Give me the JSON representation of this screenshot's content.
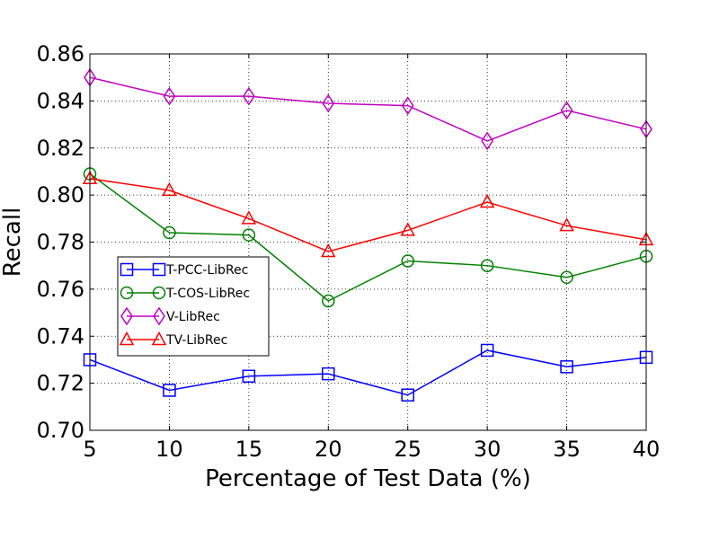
{
  "chart_data": {
    "type": "line",
    "title": "",
    "xlabel": "Percentage of Test Data (%)",
    "ylabel": "Recall",
    "x": [
      5,
      10,
      15,
      20,
      25,
      30,
      35,
      40
    ],
    "xlim": [
      5,
      40
    ],
    "ylim": [
      0.7,
      0.86
    ],
    "x_ticks": [
      "5",
      "10",
      "15",
      "20",
      "25",
      "30",
      "35",
      "40"
    ],
    "y_ticks": [
      "0.70",
      "0.72",
      "0.74",
      "0.76",
      "0.78",
      "0.80",
      "0.82",
      "0.84",
      "0.86"
    ],
    "grid": true,
    "legend_position": "center-left",
    "series": [
      {
        "name": "T-PCC-LibRec",
        "color": "#0000ff",
        "marker": "square",
        "values": [
          0.73,
          0.717,
          0.723,
          0.724,
          0.715,
          0.734,
          0.727,
          0.731
        ]
      },
      {
        "name": "T-COS-LibRec",
        "color": "#008000",
        "marker": "circle",
        "values": [
          0.809,
          0.784,
          0.783,
          0.755,
          0.772,
          0.77,
          0.765,
          0.774
        ]
      },
      {
        "name": "V-LibRec",
        "color": "#bf00bf",
        "marker": "diamond",
        "values": [
          0.85,
          0.842,
          0.842,
          0.839,
          0.838,
          0.823,
          0.836,
          0.828
        ]
      },
      {
        "name": "TV-LibRec",
        "color": "#ff0000",
        "marker": "triangle",
        "values": [
          0.807,
          0.802,
          0.79,
          0.776,
          0.785,
          0.797,
          0.787,
          0.781
        ]
      }
    ]
  }
}
